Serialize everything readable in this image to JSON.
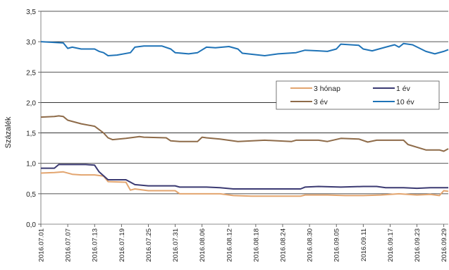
{
  "chart_data": {
    "type": "line",
    "ylabel": "Százalék",
    "ylim": [
      0,
      3.5
    ],
    "y_ticks": [
      "0,0",
      "0,5",
      "1,0",
      "1,5",
      "2,0",
      "2,5",
      "3,0",
      "3,5"
    ],
    "x_tick_labels": [
      "2016.07.01",
      "2016.07.07",
      "2016.07.13",
      "2016.07.19",
      "2016.07.25",
      "2016.07.31",
      "2016.08.06",
      "2016.08.12",
      "2016.08.18",
      "2016.08.24",
      "2016.08.30",
      "2016.09.05",
      "2016.09.11",
      "2016.09.17",
      "2016.09.23",
      "2016.09.29"
    ],
    "x_range": [
      "2016.07.01",
      "2016.09.30"
    ],
    "grid": "horizontal",
    "legend_position": "right",
    "series": [
      {
        "name": "3 hónap",
        "color": "#e3a56f",
        "points": [
          [
            "2016.07.01",
            0.84
          ],
          [
            "2016.07.04",
            0.85
          ],
          [
            "2016.07.06",
            0.86
          ],
          [
            "2016.07.08",
            0.82
          ],
          [
            "2016.07.10",
            0.81
          ],
          [
            "2016.07.13",
            0.81
          ],
          [
            "2016.07.15",
            0.79
          ],
          [
            "2016.07.16",
            0.7
          ],
          [
            "2016.07.20",
            0.69
          ],
          [
            "2016.07.21",
            0.56
          ],
          [
            "2016.07.22",
            0.58
          ],
          [
            "2016.07.25",
            0.55
          ],
          [
            "2016.07.31",
            0.55
          ],
          [
            "2016.08.01",
            0.5
          ],
          [
            "2016.08.05",
            0.5
          ],
          [
            "2016.08.10",
            0.5
          ],
          [
            "2016.08.13",
            0.47
          ],
          [
            "2016.08.17",
            0.46
          ],
          [
            "2016.08.23",
            0.46
          ],
          [
            "2016.08.28",
            0.46
          ],
          [
            "2016.08.29",
            0.48
          ],
          [
            "2016.09.03",
            0.48
          ],
          [
            "2016.09.07",
            0.47
          ],
          [
            "2016.09.11",
            0.47
          ],
          [
            "2016.09.15",
            0.48
          ],
          [
            "2016.09.19",
            0.5
          ],
          [
            "2016.09.23",
            0.48
          ],
          [
            "2016.09.26",
            0.49
          ],
          [
            "2016.09.28",
            0.47
          ],
          [
            "2016.09.29",
            0.55
          ],
          [
            "2016.09.30",
            0.54
          ]
        ]
      },
      {
        "name": "1 év",
        "color": "#3b3a72",
        "points": [
          [
            "2016.07.01",
            0.92
          ],
          [
            "2016.07.04",
            0.92
          ],
          [
            "2016.07.05",
            0.98
          ],
          [
            "2016.07.08",
            0.98
          ],
          [
            "2016.07.11",
            0.98
          ],
          [
            "2016.07.13",
            0.97
          ],
          [
            "2016.07.14",
            0.86
          ],
          [
            "2016.07.16",
            0.73
          ],
          [
            "2016.07.18",
            0.73
          ],
          [
            "2016.07.20",
            0.73
          ],
          [
            "2016.07.22",
            0.65
          ],
          [
            "2016.07.25",
            0.63
          ],
          [
            "2016.07.31",
            0.63
          ],
          [
            "2016.08.01",
            0.61
          ],
          [
            "2016.08.04",
            0.61
          ],
          [
            "2016.08.07",
            0.61
          ],
          [
            "2016.08.10",
            0.6
          ],
          [
            "2016.08.13",
            0.58
          ],
          [
            "2016.08.20",
            0.58
          ],
          [
            "2016.08.28",
            0.58
          ],
          [
            "2016.08.29",
            0.61
          ],
          [
            "2016.09.01",
            0.62
          ],
          [
            "2016.09.06",
            0.61
          ],
          [
            "2016.09.11",
            0.62
          ],
          [
            "2016.09.14",
            0.62
          ],
          [
            "2016.09.16",
            0.6
          ],
          [
            "2016.09.20",
            0.6
          ],
          [
            "2016.09.23",
            0.59
          ],
          [
            "2016.09.26",
            0.6
          ],
          [
            "2016.09.30",
            0.6
          ]
        ]
      },
      {
        "name": "3 év",
        "color": "#8e6b49",
        "points": [
          [
            "2016.07.01",
            1.76
          ],
          [
            "2016.07.04",
            1.77
          ],
          [
            "2016.07.05",
            1.78
          ],
          [
            "2016.07.06",
            1.77
          ],
          [
            "2016.07.07",
            1.71
          ],
          [
            "2016.07.10",
            1.65
          ],
          [
            "2016.07.13",
            1.61
          ],
          [
            "2016.07.15",
            1.5
          ],
          [
            "2016.07.16",
            1.42
          ],
          [
            "2016.07.17",
            1.39
          ],
          [
            "2016.07.20",
            1.41
          ],
          [
            "2016.07.22",
            1.43
          ],
          [
            "2016.07.23",
            1.44
          ],
          [
            "2016.07.24",
            1.43
          ],
          [
            "2016.07.29",
            1.42
          ],
          [
            "2016.07.30",
            1.37
          ],
          [
            "2016.08.01",
            1.36
          ],
          [
            "2016.08.05",
            1.36
          ],
          [
            "2016.08.06",
            1.43
          ],
          [
            "2016.08.07",
            1.42
          ],
          [
            "2016.08.10",
            1.4
          ],
          [
            "2016.08.14",
            1.36
          ],
          [
            "2016.08.20",
            1.38
          ],
          [
            "2016.08.26",
            1.36
          ],
          [
            "2016.08.27",
            1.38
          ],
          [
            "2016.09.01",
            1.38
          ],
          [
            "2016.09.03",
            1.36
          ],
          [
            "2016.09.06",
            1.41
          ],
          [
            "2016.09.10",
            1.4
          ],
          [
            "2016.09.12",
            1.35
          ],
          [
            "2016.09.14",
            1.38
          ],
          [
            "2016.09.17",
            1.38
          ],
          [
            "2016.09.20",
            1.38
          ],
          [
            "2016.09.21",
            1.31
          ],
          [
            "2016.09.25",
            1.22
          ],
          [
            "2016.09.28",
            1.22
          ],
          [
            "2016.09.29",
            1.2
          ],
          [
            "2016.09.30",
            1.24
          ]
        ]
      },
      {
        "name": "10 év",
        "color": "#1f73b7",
        "points": [
          [
            "2016.07.01",
            3.0
          ],
          [
            "2016.07.06",
            2.98
          ],
          [
            "2016.07.07",
            2.89
          ],
          [
            "2016.07.08",
            2.91
          ],
          [
            "2016.07.10",
            2.88
          ],
          [
            "2016.07.13",
            2.88
          ],
          [
            "2016.07.14",
            2.84
          ],
          [
            "2016.07.15",
            2.82
          ],
          [
            "2016.07.16",
            2.77
          ],
          [
            "2016.07.18",
            2.78
          ],
          [
            "2016.07.21",
            2.82
          ],
          [
            "2016.07.22",
            2.91
          ],
          [
            "2016.07.24",
            2.93
          ],
          [
            "2016.07.28",
            2.93
          ],
          [
            "2016.07.30",
            2.88
          ],
          [
            "2016.07.31",
            2.82
          ],
          [
            "2016.08.03",
            2.8
          ],
          [
            "2016.08.05",
            2.82
          ],
          [
            "2016.08.07",
            2.91
          ],
          [
            "2016.08.09",
            2.9
          ],
          [
            "2016.08.12",
            2.92
          ],
          [
            "2016.08.14",
            2.88
          ],
          [
            "2016.08.15",
            2.81
          ],
          [
            "2016.08.20",
            2.77
          ],
          [
            "2016.08.23",
            2.8
          ],
          [
            "2016.08.27",
            2.82
          ],
          [
            "2016.08.29",
            2.86
          ],
          [
            "2016.09.01",
            2.85
          ],
          [
            "2016.09.03",
            2.84
          ],
          [
            "2016.09.05",
            2.88
          ],
          [
            "2016.09.06",
            2.96
          ],
          [
            "2016.09.10",
            2.94
          ],
          [
            "2016.09.11",
            2.88
          ],
          [
            "2016.09.13",
            2.85
          ],
          [
            "2016.09.16",
            2.91
          ],
          [
            "2016.09.18",
            2.95
          ],
          [
            "2016.09.19",
            2.91
          ],
          [
            "2016.09.20",
            2.97
          ],
          [
            "2016.09.22",
            2.95
          ],
          [
            "2016.09.25",
            2.84
          ],
          [
            "2016.09.27",
            2.8
          ],
          [
            "2016.09.29",
            2.84
          ],
          [
            "2016.09.30",
            2.87
          ]
        ]
      }
    ]
  }
}
